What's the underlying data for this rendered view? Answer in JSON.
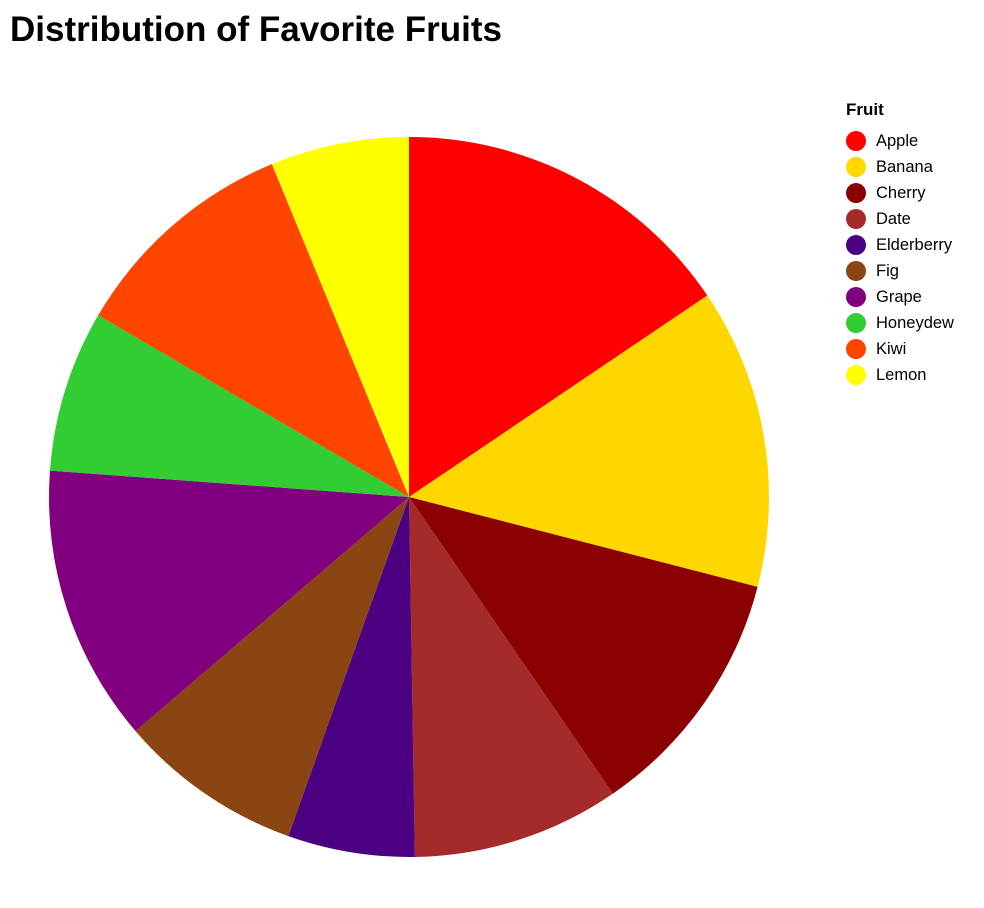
{
  "chart_data": {
    "type": "pie",
    "title": "Distribution of Favorite Fruits",
    "legend_title": "Fruit",
    "legend_position": "top-right",
    "categories": [
      "Apple",
      "Banana",
      "Cherry",
      "Date",
      "Elderberry",
      "Fig",
      "Grape",
      "Honeydew",
      "Kiwi",
      "Lemon"
    ],
    "values": [
      15,
      13,
      11,
      9,
      5.5,
      8,
      12,
      7,
      10,
      6
    ],
    "colors": [
      "#ff0000",
      "#ffd700",
      "#8b0000",
      "#a52a2a",
      "#4b0082",
      "#8b4513",
      "#800080",
      "#32cd32",
      "#ff4500",
      "#ffff00"
    ]
  }
}
